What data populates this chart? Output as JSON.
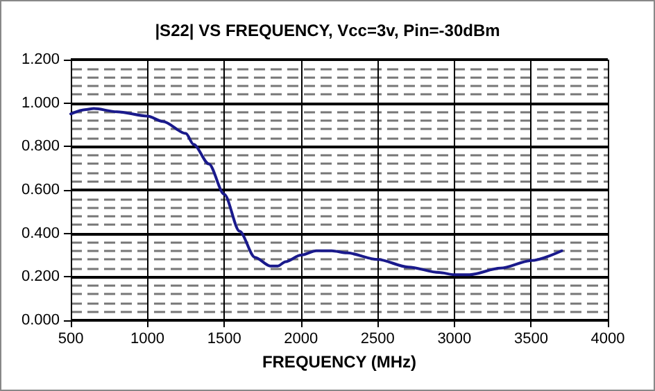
{
  "chart_data": {
    "type": "line",
    "title": "|S22| VS FREQUENCY, Vcc=3v, Pin=-30dBm",
    "xlabel": "FREQUENCY (MHz)",
    "x": [
      500,
      600,
      650,
      800,
      1000,
      1100,
      1250,
      1300,
      1400,
      1500,
      1600,
      1700,
      1800,
      1850,
      1900,
      2000,
      2100,
      2200,
      2300,
      2500,
      2700,
      2900,
      3000,
      3100,
      3300,
      3500,
      3700
    ],
    "series": [
      {
        "color": "#1a1a8c",
        "values": [
          0.95,
          0.97,
          0.975,
          0.96,
          0.94,
          0.915,
          0.86,
          0.81,
          0.72,
          0.58,
          0.41,
          0.29,
          0.25,
          0.25,
          0.27,
          0.3,
          0.32,
          0.32,
          0.31,
          0.28,
          0.245,
          0.22,
          0.21,
          0.21,
          0.24,
          0.275,
          0.32
        ]
      }
    ],
    "xlim": [
      500,
      4000
    ],
    "xticks": [
      500,
      1000,
      1500,
      2000,
      2500,
      3000,
      3500,
      4000
    ],
    "ylim": [
      0,
      1.2
    ],
    "yticks": [
      {
        "value": 0,
        "label": "0.000"
      },
      {
        "value": 0.2,
        "label": "0.200"
      },
      {
        "value": 0.4,
        "label": "0.400"
      },
      {
        "value": 0.6,
        "label": "0.600"
      },
      {
        "value": 0.8,
        "label": "0.800"
      },
      {
        "value": 1.0,
        "label": "1.000"
      },
      {
        "value": 1.2,
        "label": "1.200"
      }
    ],
    "grid": true,
    "marker": "none",
    "line_style": "solid"
  }
}
